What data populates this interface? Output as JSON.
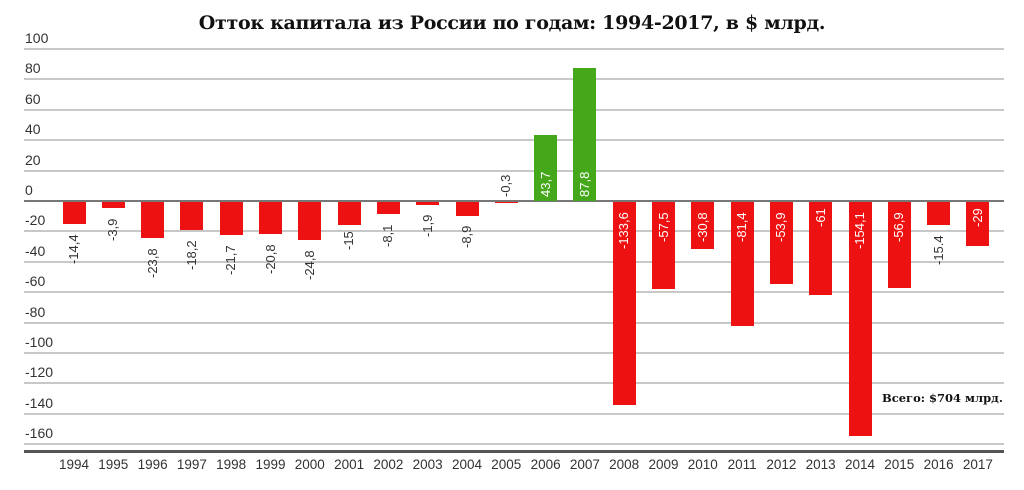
{
  "title": "Отток капитала из России по годам: 1994-2017, в $ млрд.",
  "annotation": "Всего: $704 млрд.",
  "colors": {
    "negative": "#ee1111",
    "positive": "#44a81a",
    "grid": "#c8c8c8",
    "axis": "#555555"
  },
  "y_ticks": [
    "100",
    "80",
    "60",
    "40",
    "20",
    "0",
    "-20",
    "-40",
    "-60",
    "-80",
    "-100",
    "-120",
    "-140",
    "-160"
  ],
  "chart_data": {
    "type": "bar",
    "title": "Отток капитала из России по годам: 1994-2017, в $ млрд.",
    "xlabel": "",
    "ylabel": "$ млрд.",
    "ylim": [
      -160,
      100
    ],
    "grid": true,
    "categories": [
      "1994",
      "1995",
      "1996",
      "1997",
      "1998",
      "1999",
      "2000",
      "2001",
      "2002",
      "2003",
      "2004",
      "2005",
      "2006",
      "2007",
      "2008",
      "2009",
      "2010",
      "2011",
      "2012",
      "2013",
      "2014",
      "2015",
      "2016",
      "2017"
    ],
    "values": [
      -14.4,
      -3.9,
      -23.8,
      -18.2,
      -21.7,
      -20.8,
      -24.8,
      -15,
      -8.1,
      -1.9,
      -8.9,
      -0.3,
      43.7,
      87.8,
      -133.6,
      -57.5,
      -30.8,
      -81.4,
      -53.9,
      -61,
      -154.1,
      -56.9,
      -15.4,
      -29
    ],
    "labels": [
      "-14,4",
      "-3,9",
      "-23,8",
      "-18,2",
      "-21,7",
      "-20,8",
      "-24,8",
      "-15",
      "-8,1",
      "-1,9",
      "-8,9",
      "-0,3",
      "43,7",
      "87,8",
      "-133,6",
      "-57,5",
      "-30,8",
      "-81,4",
      "-53,9",
      "-61",
      "-154,1",
      "-56,9",
      "-15.4",
      "-29"
    ],
    "annotations": [
      "Всего: $704 млрд."
    ]
  }
}
